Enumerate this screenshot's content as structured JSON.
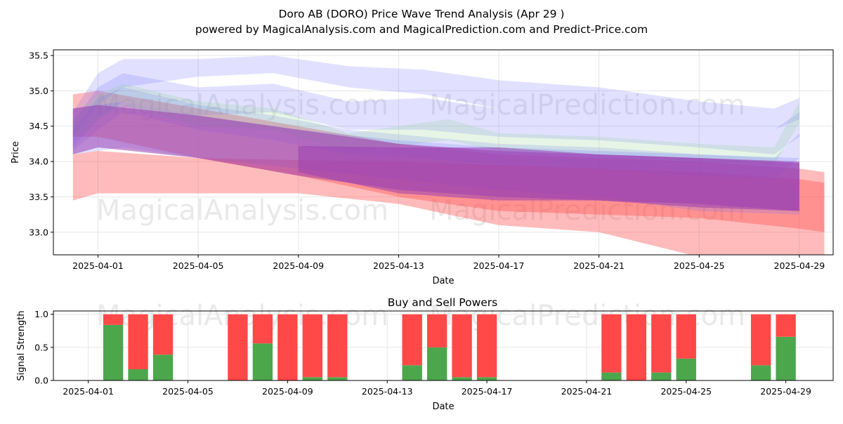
{
  "header": {
    "title": "Doro AB (DORO) Price Wave Trend Analysis (Apr 29 )",
    "subtitle": "powered by MagicalAnalysis.com and MagicalPrediction.com and Predict-Price.com"
  },
  "watermarks": [
    "MagicalAnalysis.com",
    "MagicalPrediction.com"
  ],
  "colors": {
    "red_band": "#ff4d4d",
    "blue_band": "#6a6aff",
    "green_band": "#8fd18f",
    "purple_band": "#9a40b0",
    "buy_green": "#4ca64c",
    "sell_red": "#ff4848"
  },
  "chart_data": [
    {
      "type": "area",
      "title": "",
      "xlabel": "Date",
      "ylabel": "Price",
      "x_ticks": [
        "2025-04-01",
        "2025-04-05",
        "2025-04-09",
        "2025-04-13",
        "2025-04-17",
        "2025-04-21",
        "2025-04-25",
        "2025-04-29"
      ],
      "y_ticks": [
        33.0,
        33.5,
        34.0,
        34.5,
        35.0,
        35.5
      ],
      "xlim": [
        "2025-03-30",
        "2025-04-30"
      ],
      "ylim": [
        32.68,
        35.58
      ],
      "grid": true,
      "series": [
        {
          "color": "red",
          "x": [
            "2025-03-31",
            "2025-04-01",
            "2025-04-05",
            "2025-04-09",
            "2025-04-13",
            "2025-04-17",
            "2025-04-21",
            "2025-04-25",
            "2025-04-29",
            "2025-04-30"
          ],
          "upper": [
            34.1,
            34.15,
            34.05,
            34.02,
            34.0,
            33.95,
            33.9,
            33.85,
            33.75,
            33.7
          ],
          "lower": [
            33.45,
            33.55,
            33.55,
            33.55,
            33.4,
            33.1,
            33.0,
            32.65,
            32.45,
            32.4
          ]
        },
        {
          "color": "red",
          "x": [
            "2025-03-31",
            "2025-04-01",
            "2025-04-05",
            "2025-04-09",
            "2025-04-13",
            "2025-04-17",
            "2025-04-21",
            "2025-04-25",
            "2025-04-29",
            "2025-04-30"
          ],
          "upper": [
            34.95,
            35.0,
            34.75,
            34.5,
            34.25,
            34.1,
            34.05,
            34.0,
            33.9,
            33.85
          ],
          "lower": [
            34.35,
            34.35,
            34.05,
            33.8,
            33.5,
            33.3,
            33.25,
            33.2,
            33.05,
            33.0
          ]
        },
        {
          "color": "blue",
          "x": [
            "2025-03-31",
            "2025-04-01",
            "2025-04-02",
            "2025-04-05",
            "2025-04-08",
            "2025-04-11",
            "2025-04-14",
            "2025-04-17",
            "2025-04-21",
            "2025-04-25",
            "2025-04-28",
            "2025-04-29"
          ],
          "upper": [
            34.7,
            35.25,
            35.45,
            35.45,
            35.5,
            35.35,
            35.3,
            35.15,
            35.05,
            34.85,
            34.75,
            34.9
          ],
          "lower": [
            34.35,
            34.8,
            35.05,
            35.2,
            35.25,
            35.05,
            34.95,
            34.75,
            34.7,
            34.55,
            34.45,
            34.6
          ]
        },
        {
          "color": "blue",
          "x": [
            "2025-03-31",
            "2025-04-01",
            "2025-04-02",
            "2025-04-05",
            "2025-04-08",
            "2025-04-11",
            "2025-04-14",
            "2025-04-17",
            "2025-04-21",
            "2025-04-25",
            "2025-04-28",
            "2025-04-29"
          ],
          "upper": [
            34.55,
            35.05,
            35.25,
            35.05,
            35.1,
            34.85,
            34.9,
            34.75,
            34.7,
            34.55,
            34.45,
            34.7
          ],
          "lower": [
            34.2,
            34.6,
            34.85,
            34.65,
            34.7,
            34.45,
            34.45,
            34.35,
            34.3,
            34.2,
            34.1,
            34.35
          ]
        },
        {
          "color": "blue",
          "x": [
            "2025-03-31",
            "2025-04-01",
            "2025-04-02",
            "2025-04-05",
            "2025-04-08",
            "2025-04-11",
            "2025-04-14",
            "2025-04-17",
            "2025-04-21",
            "2025-04-25",
            "2025-04-28",
            "2025-04-29"
          ],
          "upper": [
            34.45,
            34.9,
            35.05,
            34.8,
            34.65,
            34.45,
            34.35,
            34.25,
            34.2,
            34.1,
            34.05,
            34.4
          ],
          "lower": [
            34.15,
            34.45,
            34.7,
            34.45,
            34.3,
            34.1,
            34.05,
            33.95,
            33.9,
            33.8,
            33.75,
            34.05
          ]
        },
        {
          "color": "green",
          "x": [
            "2025-03-31",
            "2025-04-01",
            "2025-04-02",
            "2025-04-05",
            "2025-04-08",
            "2025-04-11",
            "2025-04-15",
            "2025-04-17",
            "2025-04-21",
            "2025-04-25",
            "2025-04-28",
            "2025-04-29"
          ],
          "upper": [
            34.6,
            34.95,
            35.1,
            34.85,
            34.75,
            34.4,
            34.6,
            34.4,
            34.35,
            34.25,
            34.2,
            34.85
          ],
          "lower": [
            34.3,
            34.6,
            34.8,
            34.5,
            34.45,
            34.15,
            34.3,
            34.15,
            34.1,
            34.0,
            33.95,
            34.55
          ]
        },
        {
          "color": "blue",
          "x": [
            "2025-03-31",
            "2025-04-02",
            "2025-04-05",
            "2025-04-09",
            "2025-04-13",
            "2025-04-17",
            "2025-04-21",
            "2025-04-25",
            "2025-04-29"
          ],
          "upper": [
            34.75,
            34.85,
            34.65,
            34.45,
            34.3,
            34.2,
            34.15,
            34.1,
            34.05
          ],
          "lower": [
            34.1,
            34.2,
            34.05,
            33.9,
            33.75,
            33.6,
            33.5,
            33.3,
            33.25
          ]
        },
        {
          "color": "purple",
          "x": [
            "2025-03-31",
            "2025-04-01",
            "2025-04-05",
            "2025-04-09",
            "2025-04-13",
            "2025-04-17",
            "2025-04-21",
            "2025-04-25",
            "2025-04-29"
          ],
          "upper": [
            34.75,
            34.8,
            34.65,
            34.45,
            34.25,
            34.15,
            34.1,
            34.05,
            34.0
          ],
          "lower": [
            34.1,
            34.2,
            34.05,
            33.8,
            33.6,
            33.5,
            33.45,
            33.35,
            33.3
          ]
        },
        {
          "color": "purple",
          "x": [
            "2025-04-09",
            "2025-04-13",
            "2025-04-17",
            "2025-04-21",
            "2025-04-25",
            "2025-04-29"
          ],
          "upper": [
            34.22,
            34.2,
            34.2,
            34.1,
            34.05,
            33.98
          ],
          "lower": [
            33.85,
            33.55,
            33.45,
            33.45,
            33.4,
            33.3
          ]
        }
      ]
    },
    {
      "type": "bar",
      "title": "Buy and Sell Powers",
      "xlabel": "Date",
      "ylabel": "Signal Strength",
      "x_ticks": [
        "2025-04-01",
        "2025-04-05",
        "2025-04-09",
        "2025-04-13",
        "2025-04-17",
        "2025-04-21",
        "2025-04-25",
        "2025-04-29"
      ],
      "y_ticks": [
        0.0,
        0.5,
        1.0
      ],
      "ylim": [
        0,
        1.05
      ],
      "xlim": [
        "2025-03-30",
        "2025-04-30"
      ],
      "stacked": true,
      "categories": [
        "2025-04-02",
        "2025-04-03",
        "2025-04-04",
        "2025-04-07",
        "2025-04-08",
        "2025-04-09",
        "2025-04-10",
        "2025-04-11",
        "2025-04-14",
        "2025-04-15",
        "2025-04-16",
        "2025-04-17",
        "2025-04-22",
        "2025-04-23",
        "2025-04-24",
        "2025-04-25",
        "2025-04-28",
        "2025-04-29"
      ],
      "series": [
        {
          "values": [
            0.84,
            0.17,
            0.39,
            0.0,
            0.56,
            0.0,
            0.05,
            0.05,
            0.23,
            0.5,
            0.05,
            0.05,
            0.12,
            0.0,
            0.12,
            0.33,
            0.23,
            0.66
          ]
        },
        {
          "values": [
            0.16,
            0.83,
            0.61,
            1.0,
            0.44,
            1.0,
            0.95,
            0.95,
            0.77,
            0.5,
            0.95,
            0.95,
            0.88,
            1.0,
            0.88,
            0.67,
            0.77,
            0.34
          ]
        }
      ]
    }
  ]
}
